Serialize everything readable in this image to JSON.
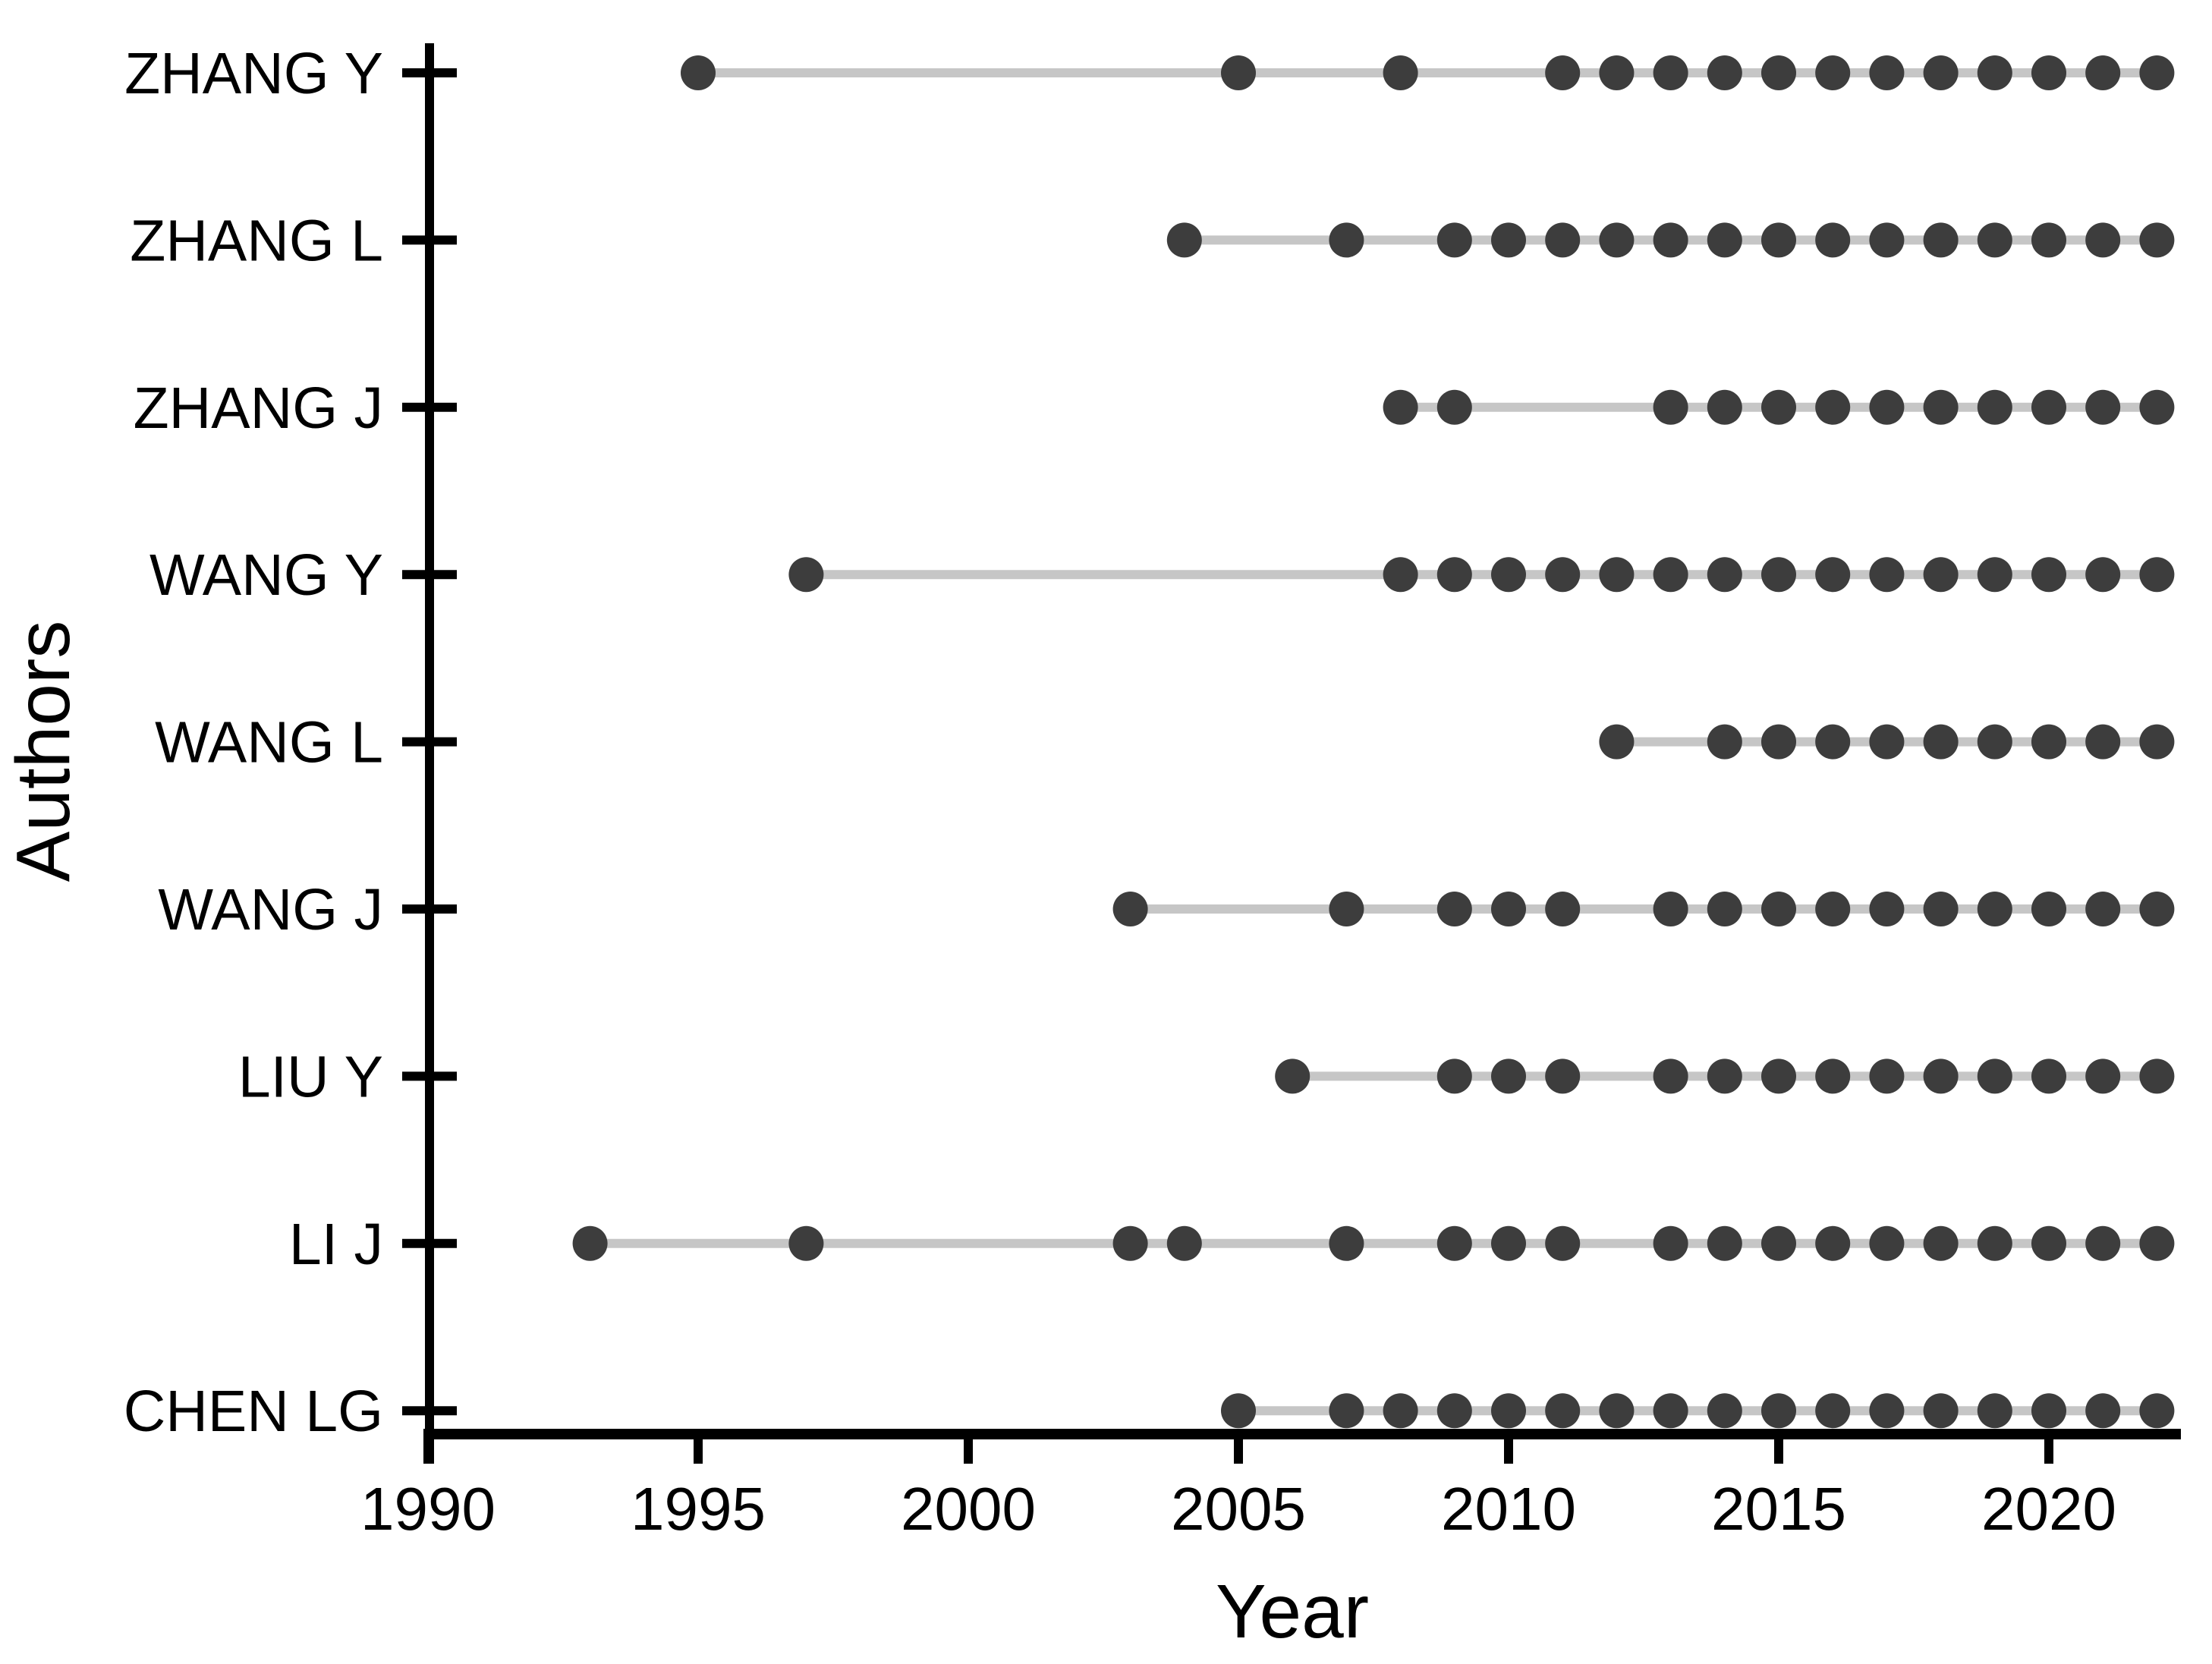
{
  "chart_data": {
    "type": "scatter",
    "subtype": "dot-timeline",
    "title": "",
    "xlabel": "Year",
    "ylabel": "Authors",
    "xlim": [
      1990,
      2022.5
    ],
    "xticks": [
      {
        "year": 1990,
        "label": "1990"
      },
      {
        "year": 1995,
        "label": "1995"
      },
      {
        "year": 2000,
        "label": "2000"
      },
      {
        "year": 2005,
        "label": "2005"
      },
      {
        "year": 2010,
        "label": "2010"
      },
      {
        "year": 2015,
        "label": "2015"
      },
      {
        "year": 2020,
        "label": "2020"
      }
    ],
    "grid": false,
    "legend": false,
    "colors": {
      "dot": "#3d3d3d",
      "connector": "#c6c6c6",
      "axis": "#000000",
      "background": "#ffffff"
    },
    "series": [
      {
        "name": "ZHANG Y",
        "years": [
          1995,
          2005,
          2008,
          2011,
          2012,
          2013,
          2014,
          2015,
          2016,
          2017,
          2018,
          2019,
          2020,
          2021,
          2022
        ]
      },
      {
        "name": "ZHANG L",
        "years": [
          2004,
          2007,
          2009,
          2010,
          2011,
          2012,
          2013,
          2014,
          2015,
          2016,
          2017,
          2018,
          2019,
          2020,
          2021,
          2022
        ]
      },
      {
        "name": "ZHANG J",
        "years": [
          2008,
          2009,
          2013,
          2014,
          2015,
          2016,
          2017,
          2018,
          2019,
          2020,
          2021,
          2022
        ]
      },
      {
        "name": "WANG Y",
        "years": [
          1997,
          2008,
          2009,
          2010,
          2011,
          2012,
          2013,
          2014,
          2015,
          2016,
          2017,
          2018,
          2019,
          2020,
          2021,
          2022
        ]
      },
      {
        "name": "WANG L",
        "years": [
          2012,
          2014,
          2015,
          2016,
          2017,
          2018,
          2019,
          2020,
          2021,
          2022
        ]
      },
      {
        "name": "WANG J",
        "years": [
          2003,
          2007,
          2009,
          2010,
          2011,
          2013,
          2014,
          2015,
          2016,
          2017,
          2018,
          2019,
          2020,
          2021,
          2022
        ]
      },
      {
        "name": "LIU Y",
        "years": [
          2006,
          2009,
          2010,
          2011,
          2013,
          2014,
          2015,
          2016,
          2017,
          2018,
          2019,
          2020,
          2021,
          2022
        ]
      },
      {
        "name": "LI J",
        "years": [
          1993,
          1997,
          2003,
          2004,
          2007,
          2009,
          2010,
          2011,
          2013,
          2014,
          2015,
          2016,
          2017,
          2018,
          2019,
          2020,
          2021,
          2022
        ]
      },
      {
        "name": "CHEN LG",
        "years": [
          2005,
          2007,
          2008,
          2009,
          2010,
          2011,
          2012,
          2013,
          2014,
          2015,
          2016,
          2017,
          2018,
          2019,
          2020,
          2021,
          2022
        ]
      }
    ]
  }
}
